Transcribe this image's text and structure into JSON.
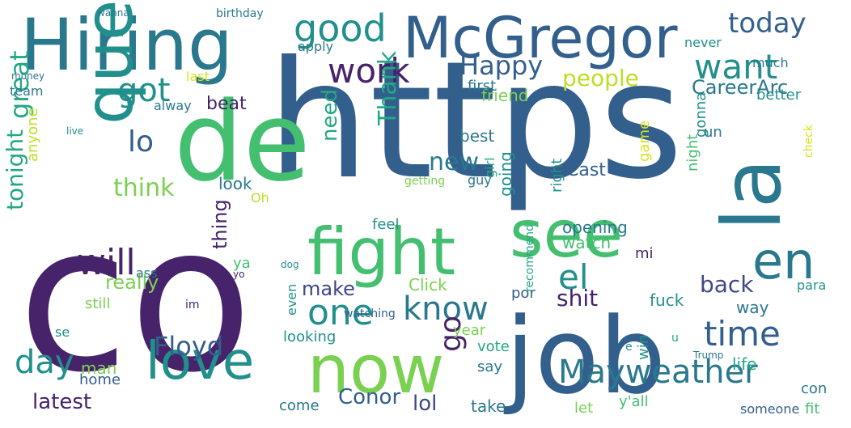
{
  "word_cloud": {
    "palette": {
      "dark_purple": "#46236a",
      "indigo": "#3f4788",
      "blue": "#335f8c",
      "steel": "#2a788e",
      "teal": "#21908c",
      "sea": "#22a884",
      "green": "#44bf70",
      "lime": "#7ad151",
      "yellowgreen": "#bddf26",
      "yellow": "#d8e219"
    },
    "words": [
      {
        "text": "https",
        "color": "#335f8c"
      },
      {
        "text": "co",
        "color": "#46236a"
      },
      {
        "text": "job",
        "color": "#335f8c"
      },
      {
        "text": "de",
        "color": "#44bf70"
      },
      {
        "text": "Hiring",
        "color": "#2a788e"
      },
      {
        "text": "McGregor",
        "color": "#335f8c"
      },
      {
        "text": "fight",
        "color": "#44bf70"
      },
      {
        "text": "see",
        "color": "#44bf70"
      },
      {
        "text": "now",
        "color": "#7ad151"
      },
      {
        "text": "love",
        "color": "#21908c"
      },
      {
        "text": "la",
        "color": "#2a788e"
      },
      {
        "text": "en",
        "color": "#2a788e"
      },
      {
        "text": "que",
        "color": "#21908c"
      },
      {
        "text": "Mayweather",
        "color": "#2a788e"
      },
      {
        "text": "good",
        "color": "#21908c"
      },
      {
        "text": "want",
        "color": "#21908c"
      },
      {
        "text": "today",
        "color": "#335f8c"
      },
      {
        "text": "work",
        "color": "#46236a"
      },
      {
        "text": "time",
        "color": "#335f8c"
      },
      {
        "text": "one",
        "color": "#21908c"
      },
      {
        "text": "know",
        "color": "#2a788e"
      },
      {
        "text": "day",
        "color": "#21908c"
      },
      {
        "text": "el",
        "color": "#21908c"
      },
      {
        "text": "will",
        "color": "#46236a"
      },
      {
        "text": "Floyd",
        "color": "#335f8c"
      },
      {
        "text": "got",
        "color": "#21908c"
      },
      {
        "text": "lo",
        "color": "#335f8c"
      },
      {
        "text": "great",
        "color": "#22a884"
      },
      {
        "text": "tonight",
        "color": "#22a884"
      },
      {
        "text": "Happy",
        "color": "#335f8c"
      },
      {
        "text": "people",
        "color": "#bddf26"
      },
      {
        "text": "CareerArc",
        "color": "#2a788e"
      },
      {
        "text": "think",
        "color": "#7ad151"
      },
      {
        "text": "need",
        "color": "#22a884"
      },
      {
        "text": "new",
        "color": "#2a788e"
      },
      {
        "text": "Thank",
        "color": "#22a884"
      },
      {
        "text": "go",
        "color": "#46236a"
      },
      {
        "text": "back",
        "color": "#3f4788"
      },
      {
        "text": "shit",
        "color": "#46236a"
      },
      {
        "text": "make",
        "color": "#3f4788"
      },
      {
        "text": "latest",
        "color": "#46236a"
      },
      {
        "text": "Conor",
        "color": "#335f8c"
      },
      {
        "text": "lol",
        "color": "#3f4788"
      },
      {
        "text": "really",
        "color": "#7ad151"
      },
      {
        "text": "night",
        "color": "#44bf70"
      },
      {
        "text": "beat",
        "color": "#46236a"
      },
      {
        "text": "friend",
        "color": "#7ad151"
      },
      {
        "text": "first",
        "color": "#2a788e"
      },
      {
        "text": "best",
        "color": "#2a788e"
      },
      {
        "text": "going",
        "color": "#21908c"
      },
      {
        "text": "gonna",
        "color": "#21908c"
      },
      {
        "text": "Cast",
        "color": "#335f8c"
      },
      {
        "text": "un",
        "color": "#2a788e"
      },
      {
        "text": "game",
        "color": "#d8e219"
      },
      {
        "text": "opening",
        "color": "#2a788e"
      },
      {
        "text": "watch",
        "color": "#44bf70"
      },
      {
        "text": "mi",
        "color": "#46236a"
      },
      {
        "text": "Click",
        "color": "#7ad151"
      },
      {
        "text": "fuck",
        "color": "#21908c"
      },
      {
        "text": "way",
        "color": "#2a788e"
      },
      {
        "text": "life",
        "color": "#22a884"
      },
      {
        "text": "vote",
        "color": "#22a884"
      },
      {
        "text": "year",
        "color": "#7ad151"
      },
      {
        "text": "say",
        "color": "#2a788e"
      },
      {
        "text": "still",
        "color": "#7ad151"
      },
      {
        "text": "man",
        "color": "#7ad151"
      },
      {
        "text": "home",
        "color": "#335f8c"
      },
      {
        "text": "take",
        "color": "#2a788e"
      },
      {
        "text": "come",
        "color": "#2a788e"
      },
      {
        "text": "y'all",
        "color": "#44bf70"
      },
      {
        "text": "fit",
        "color": "#44bf70"
      },
      {
        "text": "con",
        "color": "#2a788e"
      },
      {
        "text": "someone",
        "color": "#335f8c"
      },
      {
        "text": "let",
        "color": "#7ad151"
      },
      {
        "text": "look",
        "color": "#2a788e"
      },
      {
        "text": "Oh",
        "color": "#bddf26"
      },
      {
        "text": "ass",
        "color": "#2a788e"
      },
      {
        "text": "thing",
        "color": "#46236a"
      },
      {
        "text": "ya",
        "color": "#44bf70"
      },
      {
        "text": "even",
        "color": "#21908c"
      },
      {
        "text": "looking",
        "color": "#21908c"
      },
      {
        "text": "feel",
        "color": "#21908c"
      },
      {
        "text": "por",
        "color": "#335f8c"
      },
      {
        "text": "se",
        "color": "#21908c"
      },
      {
        "text": "anyone",
        "color": "#bddf26"
      },
      {
        "text": "alway",
        "color": "#2a788e"
      },
      {
        "text": "last",
        "color": "#d8e219"
      },
      {
        "text": "apply",
        "color": "#2a788e"
      },
      {
        "text": "never",
        "color": "#21908c"
      },
      {
        "text": "much",
        "color": "#2a788e"
      },
      {
        "text": "better",
        "color": "#21908c"
      },
      {
        "text": "team",
        "color": "#2a788e"
      },
      {
        "text": "guy",
        "color": "#2a788e"
      },
      {
        "text": "girl",
        "color": "#22a884"
      },
      {
        "text": "right",
        "color": "#21908c"
      },
      {
        "text": "win",
        "color": "#21908c"
      },
      {
        "text": "recommend",
        "color": "#22a884"
      },
      {
        "text": "getting",
        "color": "#7ad151"
      },
      {
        "text": "watching",
        "color": "#335f8c"
      },
      {
        "text": "e",
        "color": "#21908c"
      },
      {
        "text": "u",
        "color": "#22a884"
      },
      {
        "text": "para",
        "color": "#21908c"
      },
      {
        "text": "check",
        "color": "#d8e219"
      },
      {
        "text": "birthday",
        "color": "#2a788e"
      },
      {
        "text": "wanna",
        "color": "#2a788e"
      },
      {
        "text": "money",
        "color": "#2a788e"
      },
      {
        "text": "live",
        "color": "#21908c"
      },
      {
        "text": "im",
        "color": "#46236a"
      },
      {
        "text": "yo",
        "color": "#46236a"
      },
      {
        "text": "Trump",
        "color": "#2a788e"
      },
      {
        "text": "dog",
        "color": "#21908c"
      }
    ]
  }
}
